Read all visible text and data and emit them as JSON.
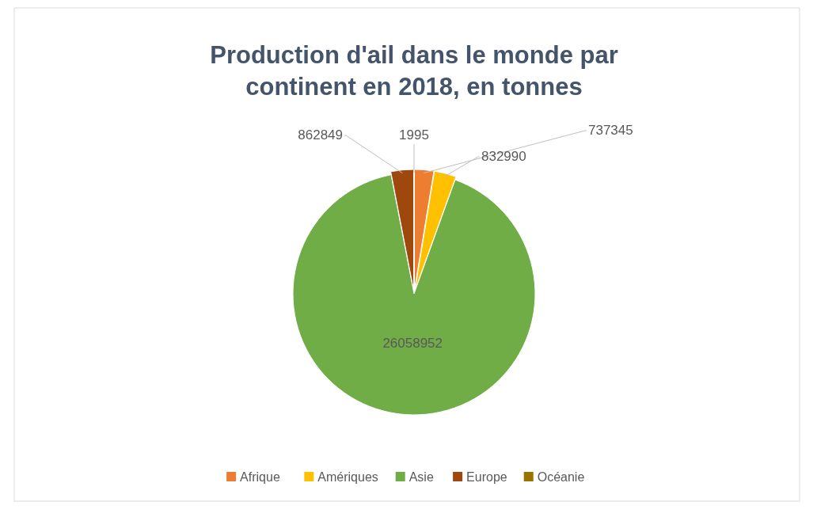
{
  "chart_data": {
    "type": "pie",
    "title": "Production d'ail dans le monde par continent en 2018, en tonnes",
    "categories": [
      "Afrique",
      "Amériques",
      "Asie",
      "Europe",
      "Océanie"
    ],
    "values": [
      737345,
      832990,
      26058952,
      862849,
      1995
    ],
    "colors": [
      "#ed7d31",
      "#ffc000",
      "#70ad47",
      "#9e480e",
      "#997300"
    ],
    "data_labels": true,
    "legend": "bottom"
  }
}
